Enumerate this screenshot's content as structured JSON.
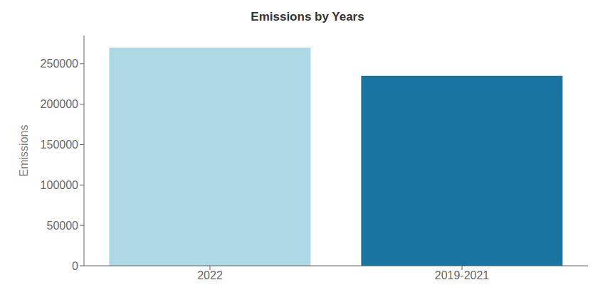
{
  "chart_data": {
    "type": "bar",
    "title": "Emissions by Years",
    "ylabel": "Emissions",
    "categories": [
      "2022",
      "2019-2021"
    ],
    "values": [
      270000,
      235000
    ],
    "colors": [
      "#add8e6",
      "#1874a0"
    ],
    "ylim": [
      0,
      285000
    ],
    "yticks": [
      0,
      50000,
      100000,
      150000,
      200000,
      250000
    ],
    "grid": false
  }
}
